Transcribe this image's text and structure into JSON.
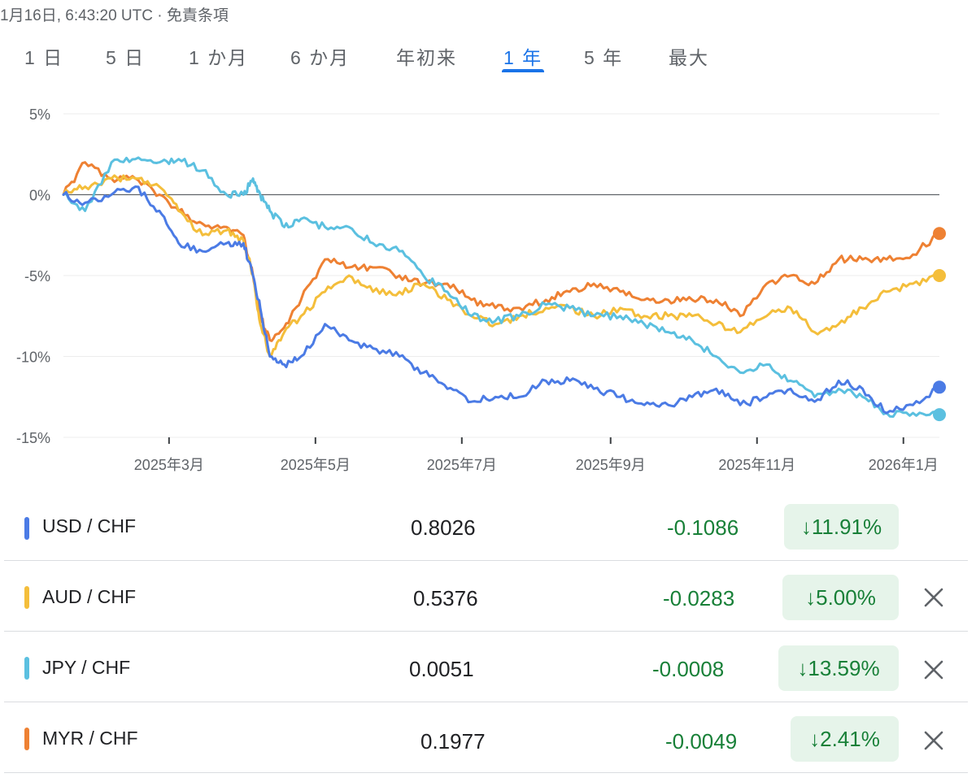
{
  "header": {
    "timestamp": "1月16日, 6:43:20 UTC",
    "separator": " · ",
    "disclaimer": "免責条項"
  },
  "range_tabs": [
    {
      "label": "1 日",
      "active": false
    },
    {
      "label": "5 日",
      "active": false
    },
    {
      "label": "1 か月",
      "active": false
    },
    {
      "label": "6 か月",
      "active": false
    },
    {
      "label": "年初来",
      "active": false
    },
    {
      "label": "1 年",
      "active": true
    },
    {
      "label": "5 年",
      "active": false
    },
    {
      "label": "最大",
      "active": false
    }
  ],
  "colors": {
    "USD": "#4b7be5",
    "AUD": "#f4be3b",
    "JPY": "#5bc0e0",
    "MYR": "#ee8133",
    "positive_green": "#188038",
    "active_tab": "#1a73e8"
  },
  "chart_data": {
    "type": "line",
    "title": "",
    "xlabel": "",
    "ylabel": "",
    "ylim": [
      -15,
      5
    ],
    "y_ticks": [
      "5%",
      "0%",
      "-5%",
      "-10%",
      "-15%"
    ],
    "y_tick_values": [
      5,
      0,
      -5,
      -10,
      -15
    ],
    "x_ticks": [
      "2025年3月",
      "2025年5月",
      "2025年7月",
      "2025年9月",
      "2025年11月",
      "2026年1月"
    ],
    "x_tick_dates": [
      "2025-03-01",
      "2025-05-01",
      "2025-07-01",
      "2025-09-01",
      "2025-11-01",
      "2026-01-01"
    ],
    "x_range": [
      "2025-01-16",
      "2026-01-16"
    ],
    "grid": true,
    "series": [
      {
        "name": "MYR / CHF",
        "color": "#ee8133",
        "x": [
          "2025-01-16",
          "2025-01-25",
          "2025-02-05",
          "2025-02-15",
          "2025-02-25",
          "2025-03-05",
          "2025-03-15",
          "2025-03-25",
          "2025-04-01",
          "2025-04-05",
          "2025-04-08",
          "2025-04-12",
          "2025-04-18",
          "2025-04-25",
          "2025-05-05",
          "2025-05-15",
          "2025-05-25",
          "2025-06-05",
          "2025-06-15",
          "2025-06-25",
          "2025-07-05",
          "2025-07-15",
          "2025-07-25",
          "2025-08-05",
          "2025-08-15",
          "2025-08-25",
          "2025-09-05",
          "2025-09-15",
          "2025-09-25",
          "2025-10-05",
          "2025-10-15",
          "2025-10-25",
          "2025-11-05",
          "2025-11-15",
          "2025-11-25",
          "2025-12-05",
          "2025-12-15",
          "2025-12-25",
          "2026-01-05",
          "2026-01-16"
        ],
        "values": [
          0,
          2,
          1,
          1,
          0,
          -1,
          -1.8,
          -2,
          -2.5,
          -5,
          -7.5,
          -9,
          -8.2,
          -6.5,
          -4,
          -4.5,
          -4.5,
          -5,
          -5.5,
          -5.5,
          -6.5,
          -7,
          -7,
          -6.5,
          -6,
          -5.5,
          -6,
          -6.5,
          -6.5,
          -6.5,
          -6.5,
          -7.5,
          -5.5,
          -5,
          -5.5,
          -4,
          -4,
          -4,
          -3.7,
          -2.4
        ]
      },
      {
        "name": "AUD / CHF",
        "color": "#f4be3b",
        "x": [
          "2025-01-16",
          "2025-01-25",
          "2025-02-05",
          "2025-02-15",
          "2025-02-25",
          "2025-03-05",
          "2025-03-15",
          "2025-03-25",
          "2025-04-01",
          "2025-04-05",
          "2025-04-08",
          "2025-04-12",
          "2025-04-18",
          "2025-04-25",
          "2025-05-05",
          "2025-05-15",
          "2025-05-25",
          "2025-06-05",
          "2025-06-15",
          "2025-06-25",
          "2025-07-05",
          "2025-07-15",
          "2025-07-25",
          "2025-08-05",
          "2025-08-15",
          "2025-08-25",
          "2025-09-05",
          "2025-09-15",
          "2025-09-25",
          "2025-10-05",
          "2025-10-15",
          "2025-10-25",
          "2025-11-05",
          "2025-11-15",
          "2025-11-25",
          "2025-12-05",
          "2025-12-15",
          "2025-12-25",
          "2026-01-05",
          "2026-01-16"
        ],
        "values": [
          0,
          0.5,
          1,
          1,
          0.5,
          -1,
          -2.5,
          -2.2,
          -2.8,
          -5,
          -8,
          -10,
          -8.5,
          -7.5,
          -6,
          -5,
          -6,
          -6,
          -5.5,
          -6.5,
          -7.5,
          -8,
          -7.5,
          -7,
          -7,
          -7.5,
          -7,
          -7.5,
          -7.5,
          -7.5,
          -8,
          -8.5,
          -7.5,
          -7,
          -8.5,
          -8,
          -7,
          -6,
          -5.5,
          -5
        ]
      },
      {
        "name": "JPY / CHF",
        "color": "#5bc0e0",
        "x": [
          "2025-01-16",
          "2025-01-25",
          "2025-02-05",
          "2025-02-15",
          "2025-02-25",
          "2025-03-05",
          "2025-03-15",
          "2025-03-25",
          "2025-04-01",
          "2025-04-05",
          "2025-04-08",
          "2025-04-12",
          "2025-04-18",
          "2025-04-25",
          "2025-05-05",
          "2025-05-15",
          "2025-05-25",
          "2025-06-05",
          "2025-06-15",
          "2025-06-25",
          "2025-07-05",
          "2025-07-15",
          "2025-07-25",
          "2025-08-05",
          "2025-08-15",
          "2025-08-25",
          "2025-09-05",
          "2025-09-15",
          "2025-09-25",
          "2025-10-05",
          "2025-10-15",
          "2025-10-25",
          "2025-11-05",
          "2025-11-15",
          "2025-11-25",
          "2025-12-05",
          "2025-12-15",
          "2025-12-25",
          "2026-01-05",
          "2026-01-16"
        ],
        "values": [
          0,
          -1,
          2,
          2.2,
          2,
          2.2,
          1.5,
          0,
          0,
          1,
          0,
          -1,
          -2,
          -1.5,
          -2,
          -2,
          -3,
          -3.5,
          -5,
          -6,
          -7.5,
          -7.8,
          -7.5,
          -6.8,
          -7,
          -7.5,
          -7.5,
          -8,
          -8.5,
          -9,
          -10,
          -11,
          -10.5,
          -11.5,
          -12.5,
          -12,
          -12.5,
          -13.5,
          -13.5,
          -13.6
        ]
      },
      {
        "name": "USD / CHF",
        "color": "#4b7be5",
        "x": [
          "2025-01-16",
          "2025-01-25",
          "2025-02-05",
          "2025-02-15",
          "2025-02-25",
          "2025-03-05",
          "2025-03-15",
          "2025-03-25",
          "2025-04-01",
          "2025-04-05",
          "2025-04-08",
          "2025-04-12",
          "2025-04-18",
          "2025-04-25",
          "2025-05-05",
          "2025-05-15",
          "2025-05-25",
          "2025-06-05",
          "2025-06-15",
          "2025-06-25",
          "2025-07-05",
          "2025-07-15",
          "2025-07-25",
          "2025-08-05",
          "2025-08-15",
          "2025-08-25",
          "2025-09-05",
          "2025-09-15",
          "2025-09-25",
          "2025-10-05",
          "2025-10-15",
          "2025-10-25",
          "2025-11-05",
          "2025-11-15",
          "2025-11-25",
          "2025-12-05",
          "2025-12-15",
          "2025-12-25",
          "2026-01-05",
          "2026-01-16"
        ],
        "values": [
          0,
          -0.5,
          0,
          0.5,
          -1,
          -3,
          -3.5,
          -3,
          -3,
          -5,
          -7,
          -10,
          -10.5,
          -10,
          -8,
          -9,
          -9.5,
          -10,
          -11,
          -12,
          -12.8,
          -12.5,
          -12.5,
          -11.5,
          -11.5,
          -12,
          -12.5,
          -13,
          -13,
          -12.5,
          -12,
          -13,
          -12.5,
          -12,
          -12.8,
          -11.5,
          -12,
          -13.5,
          -13,
          -11.9
        ]
      }
    ]
  },
  "rows": [
    {
      "pair": "USD / CHF",
      "currency": "USD",
      "price": "0.8026",
      "change": "-0.1086",
      "pct": "↓11.91%",
      "removable": false
    },
    {
      "pair": "AUD / CHF",
      "currency": "AUD",
      "price": "0.5376",
      "change": "-0.0283",
      "pct": "↓5.00%",
      "removable": true
    },
    {
      "pair": "JPY / CHF",
      "currency": "JPY",
      "price": "0.0051",
      "change": "-0.0008",
      "pct": "↓13.59%",
      "removable": true
    },
    {
      "pair": "MYR / CHF",
      "currency": "MYR",
      "price": "0.1977",
      "change": "-0.0049",
      "pct": "↓2.41%",
      "removable": true
    }
  ]
}
